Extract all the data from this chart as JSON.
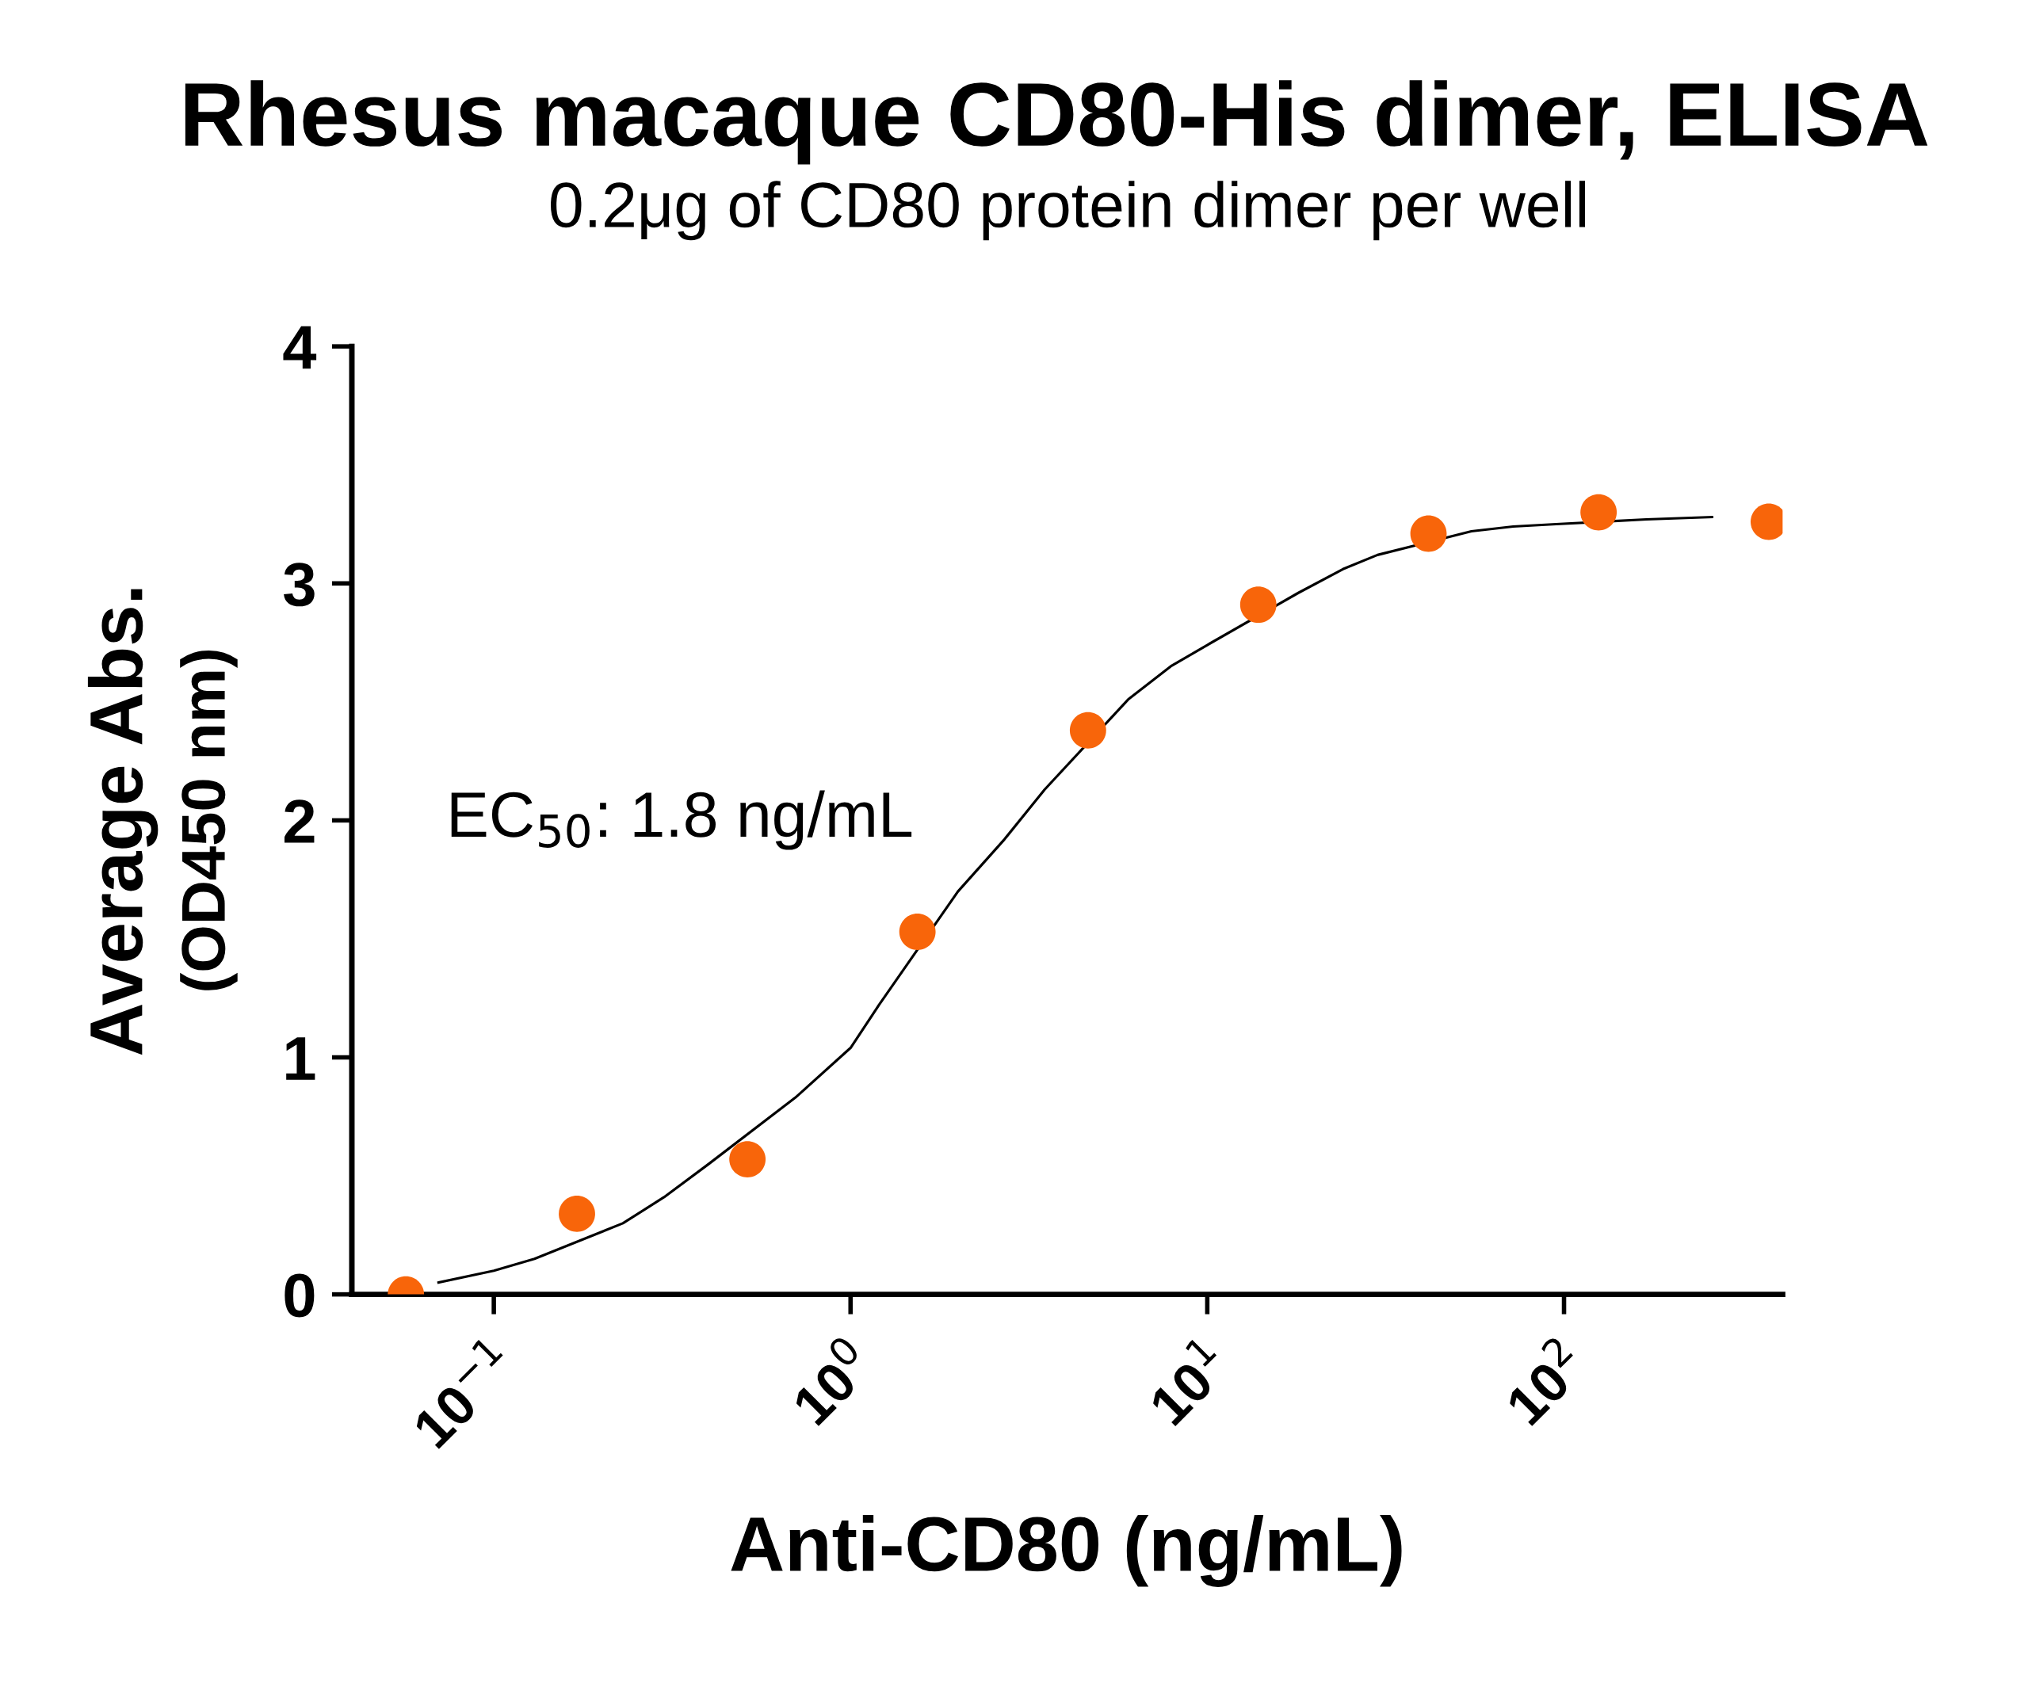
{
  "chart_data": {
    "type": "scatter",
    "title": "Rhesus macaque CD80-His dimer, ELISA",
    "subtitle": "0.2μg of CD80 protein dimer per well",
    "xlabel": "Anti-CD80 (ng/mL)",
    "ylabel": "Average Abs.\n(OD450 nm)",
    "annotations": [
      "EC$_{50}$: 1.8 ng/mL"
    ],
    "log": "x",
    "grid": false,
    "legend": false,
    "marker": "circle",
    "xlim": [
      0.04,
      410
    ],
    "ylim": [
      0,
      4
    ],
    "xticks": [
      {
        "value": 0.1,
        "label": "10$^{−1}$"
      },
      {
        "value": 1,
        "label": "10$^{0}$"
      },
      {
        "value": 10,
        "label": "10$^{1}$"
      },
      {
        "value": 100,
        "label": "10$^{2}$"
      }
    ],
    "yticks": [
      0,
      1,
      2,
      3,
      4
    ],
    "x": [
      0.0567,
      0.171,
      0.514,
      1.54,
      4.63,
      13.9,
      41.7,
      125,
      375
    ],
    "series": [
      {
        "color": "#f8650a",
        "values": [
          0.0,
          0.34,
          0.57,
          1.53,
          2.38,
          2.91,
          3.21,
          3.3,
          3.26
        ]
      },
      {
        "type": "line",
        "color": "#000000",
        "marker": "none",
        "line_style": "solid",
        "x": [
          0.07,
          0.1,
          0.13,
          0.23,
          0.3,
          0.4,
          0.7,
          1.0,
          1.2,
          2.0,
          2.7,
          3.5,
          6.0,
          7.9,
          10,
          18,
          24,
          30,
          55,
          72,
          95,
          170,
          260
        ],
        "values": [
          0.05,
          0.1,
          0.15,
          0.3,
          0.41,
          0.55,
          0.83,
          1.04,
          1.22,
          1.7,
          1.92,
          2.13,
          2.51,
          2.65,
          2.74,
          2.96,
          3.06,
          3.12,
          3.22,
          3.24,
          3.25,
          3.27,
          3.28
        ]
      }
    ]
  }
}
